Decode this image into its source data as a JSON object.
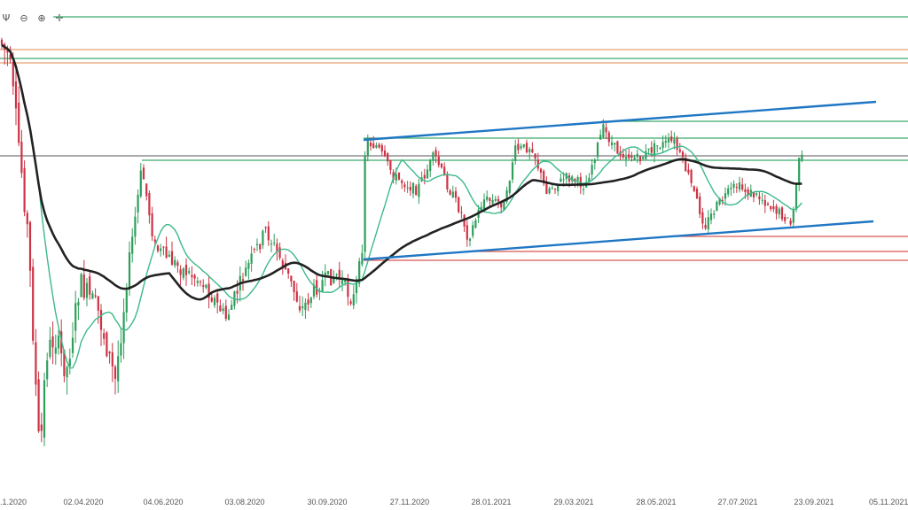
{
  "toolbar": {
    "items": [
      {
        "icon": "draw-tool-icon",
        "glyph": "Ψ"
      },
      {
        "icon": "zoom-out-icon",
        "glyph": "⊖"
      },
      {
        "icon": "zoom-in-icon",
        "glyph": "⊕"
      },
      {
        "icon": "crosshair-icon",
        "glyph": "✛"
      }
    ]
  },
  "chart_data": {
    "type": "candlestick",
    "x_tick_labels": [
      "02.04.2020",
      "04.06.2020",
      "03.08.2020",
      "30.09.2020",
      "27.11.2020",
      "28.01.2021",
      "29.03.2021",
      "28.05.2021",
      "27.07.2021",
      "23.09.2021",
      "05.11.2021"
    ],
    "x_first_label_partial": ".1.2020",
    "grid": false,
    "legend": "none",
    "colors": {
      "up": "#2e9e5b",
      "down": "#cc3344",
      "ma_fast": "#3cb98a",
      "ma_slow": "#222222",
      "trendline": "#1f77c4",
      "level_green": "#3aaa6a",
      "level_red": "#d9534f",
      "level_orange": "#e8a070",
      "level_gray": "#777777"
    },
    "series": [
      {
        "kind": "candles",
        "note": "daily OHLC"
      },
      {
        "kind": "moving_average_fast"
      },
      {
        "kind": "moving_average_slow"
      }
    ]
  }
}
